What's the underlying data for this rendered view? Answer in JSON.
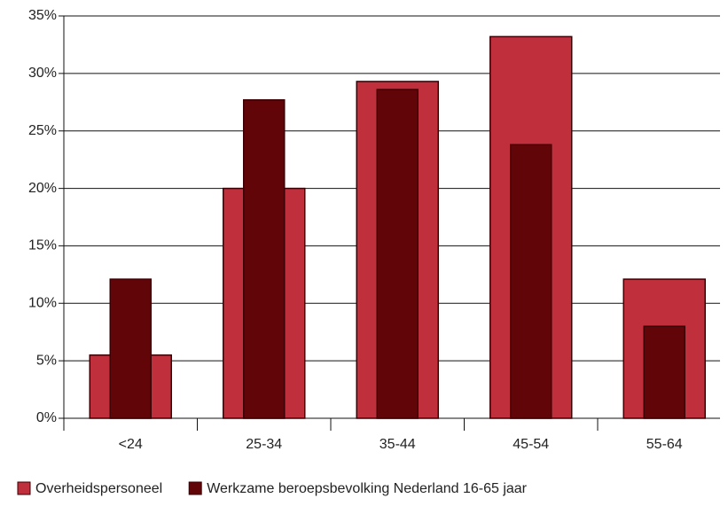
{
  "chart_data": {
    "type": "bar",
    "categories": [
      "<24",
      "25-34",
      "35-44",
      "45-54",
      "55-64"
    ],
    "series": [
      {
        "name": "Overheidspersoneel",
        "color": "#c0303c",
        "values": [
          5.5,
          20,
          29.3,
          33.2,
          12.1
        ]
      },
      {
        "name": "Werkzame beroepsbevolking Nederland 16-65 jaar",
        "color": "#620508",
        "values": [
          12.1,
          27.7,
          28.6,
          23.8,
          8.0
        ]
      }
    ],
    "ylim": [
      0,
      35
    ],
    "yticks": [
      {
        "value": 0,
        "label": "0%"
      },
      {
        "value": 5,
        "label": "5%"
      },
      {
        "value": 10,
        "label": "10%"
      },
      {
        "value": 15,
        "label": "15%"
      },
      {
        "value": 20,
        "label": "20%"
      },
      {
        "value": 25,
        "label": "25%"
      },
      {
        "value": 30,
        "label": "30%"
      },
      {
        "value": 35,
        "label": "35%"
      }
    ],
    "grid": true,
    "legend": "bottom"
  }
}
